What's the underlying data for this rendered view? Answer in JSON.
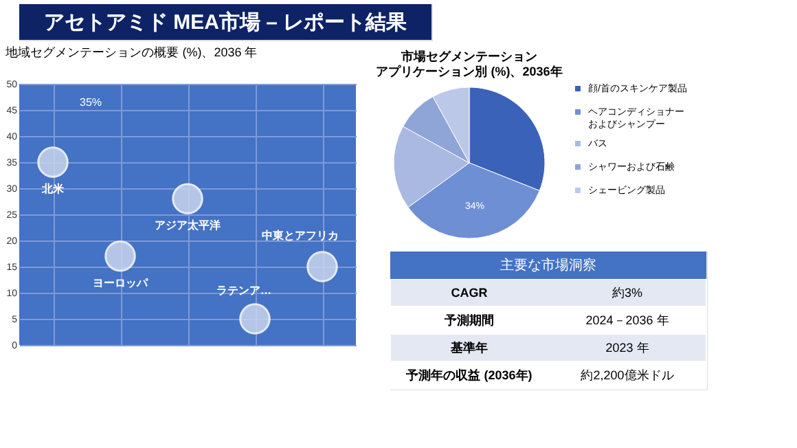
{
  "chart_data": [
    {
      "type": "other",
      "title": "アセトアミド MEA市場 – レポート結果"
    },
    {
      "type": "bubble",
      "title": "地域セグメンテーションの概要 (%)、2036 年",
      "categories": [
        null,
        null,
        null,
        null,
        null
      ],
      "ylim": [
        0,
        50
      ],
      "yticks": [
        0,
        5,
        10,
        15,
        20,
        25,
        30,
        35,
        40,
        45,
        50
      ],
      "grid": true,
      "legend": false,
      "annotations": [
        "35%"
      ],
      "series": [
        {
          "name": "北米",
          "color": "#c9d4ee",
          "values": [
            35,
            null,
            null,
            null,
            null
          ],
          "sizes": [
            1,
            null,
            null,
            null,
            null
          ]
        },
        {
          "name": "ヨーロッパ",
          "color": "#c9d4ee",
          "values": [
            null,
            17,
            null,
            null,
            null
          ],
          "sizes": [
            null,
            1,
            null,
            null,
            null
          ]
        },
        {
          "name": "アジア太平洋",
          "color": "#c9d4ee",
          "values": [
            null,
            null,
            28,
            null,
            null
          ],
          "sizes": [
            null,
            null,
            1,
            null,
            null
          ]
        },
        {
          "name": "ラテンア…",
          "color": "#c9d4ee",
          "values": [
            null,
            null,
            null,
            5,
            null
          ],
          "sizes": [
            null,
            null,
            null,
            1,
            null
          ]
        },
        {
          "name": "中東とアフリカ",
          "color": "#c9d4ee",
          "values": [
            null,
            null,
            null,
            null,
            15
          ],
          "sizes": [
            null,
            null,
            null,
            null,
            1
          ]
        }
      ]
    },
    {
      "type": "pie",
      "title": "市場セグメンテーションアプリケーション別 (%)、2036年",
      "legend": "right",
      "categories": [
        "顔/首のスキンケア製品",
        "ヘアコンディショナーおよびシャンプー",
        "バス",
        "シャワーおよび石鹸",
        "シェービング製品"
      ],
      "values": [
        31,
        34,
        18,
        9,
        8
      ],
      "colors": [
        "#3a62b8",
        "#6f8fd4",
        "#a9b9e1",
        "#8fa4d7",
        "#bcc8e8"
      ],
      "value_labels": [
        null,
        "34%",
        null,
        null,
        null
      ]
    },
    {
      "type": "other",
      "title": "主要な市場洞察",
      "annotations": [
        "CAGR",
        "約3%",
        "予測期間",
        "2024－2036 年",
        "基準年",
        "2023 年",
        "予測年の収益 (2036年)",
        "約2,200億米ドル"
      ]
    }
  ]
}
